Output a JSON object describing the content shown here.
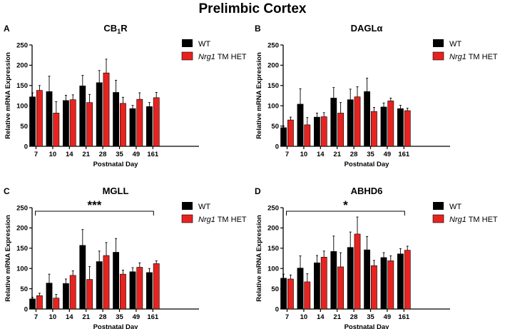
{
  "title": "Prelimbic Cortex",
  "colors": {
    "wt": "#000000",
    "het": "#e8231f",
    "axis": "#000000"
  },
  "chart_data": [
    {
      "type": "bar",
      "panel": "A",
      "title": "CB",
      "title_sub": "1",
      "title_suffix": "R",
      "xlabel": "Postnatal Day",
      "ylabel": "Relative mRNA Expression",
      "ylim": [
        0,
        250
      ],
      "yticks": [
        "0",
        "50",
        "100",
        "150",
        "200",
        "250"
      ],
      "categories": [
        "7",
        "10",
        "14",
        "21",
        "28",
        "35",
        "49",
        "161"
      ],
      "legend": {
        "wt": "WT",
        "het_italic": "Nrg1",
        "het_rest": " TM HET",
        "position": "top-right"
      },
      "significance": "",
      "series": [
        {
          "name": "WT",
          "values": [
            122,
            135,
            113,
            149,
            157,
            133,
            93,
            98
          ],
          "errors": [
            10,
            38,
            13,
            26,
            30,
            30,
            8,
            10
          ]
        },
        {
          "name": "Nrg1 TM HET",
          "values": [
            138,
            82,
            115,
            108,
            181,
            106,
            116,
            120
          ],
          "errors": [
            12,
            28,
            12,
            20,
            34,
            15,
            16,
            13
          ]
        }
      ]
    },
    {
      "type": "bar",
      "panel": "B",
      "title": "DAGLα",
      "title_sub": "",
      "title_suffix": "",
      "xlabel": "Postnatal Day",
      "ylabel": "Relative mRNA Expression",
      "ylim": [
        0,
        250
      ],
      "yticks": [
        "0",
        "50",
        "100",
        "150",
        "200",
        "250"
      ],
      "categories": [
        "7",
        "10",
        "14",
        "21",
        "28",
        "35",
        "49",
        "161"
      ],
      "legend": {
        "wt": "WT",
        "het_italic": "Nrg1",
        "het_rest": " TM HET",
        "position": "top-right"
      },
      "significance": "",
      "series": [
        {
          "name": "WT",
          "values": [
            46,
            104,
            72,
            119,
            115,
            135,
            97,
            93
          ],
          "errors": [
            4,
            38,
            10,
            26,
            26,
            33,
            10,
            8
          ]
        },
        {
          "name": "Nrg1 TM HET",
          "values": [
            65,
            53,
            73,
            82,
            122,
            86,
            112,
            88
          ],
          "errors": [
            7,
            18,
            10,
            26,
            25,
            10,
            7,
            6
          ]
        }
      ]
    },
    {
      "type": "bar",
      "panel": "C",
      "title": "MGLL",
      "title_sub": "",
      "title_suffix": "",
      "xlabel": "Postnatal Day",
      "ylabel": "Relative mRNA Expression",
      "ylim": [
        0,
        250
      ],
      "yticks": [
        "0",
        "50",
        "100",
        "150",
        "200",
        "250"
      ],
      "categories": [
        "7",
        "10",
        "14",
        "21",
        "28",
        "35",
        "49",
        "161"
      ],
      "legend": {
        "wt": "WT",
        "het_italic": "Nrg1",
        "het_rest": " TM HET",
        "position": "top-right"
      },
      "significance": "***",
      "series": [
        {
          "name": "WT",
          "values": [
            25,
            64,
            63,
            157,
            117,
            140,
            92,
            90
          ],
          "errors": [
            4,
            22,
            11,
            39,
            26,
            34,
            10,
            10
          ]
        },
        {
          "name": "Nrg1 TM HET",
          "values": [
            33,
            27,
            83,
            73,
            132,
            86,
            103,
            112
          ],
          "errors": [
            6,
            9,
            11,
            32,
            32,
            10,
            11,
            7
          ]
        }
      ]
    },
    {
      "type": "bar",
      "panel": "D",
      "title": "ABHD6",
      "title_sub": "",
      "title_suffix": "",
      "xlabel": "Postnatal Day",
      "ylabel": "Relative mRNA Expression",
      "ylim": [
        0,
        250
      ],
      "yticks": [
        "0",
        "50",
        "100",
        "150",
        "200",
        "250"
      ],
      "categories": [
        "7",
        "10",
        "14",
        "21",
        "28",
        "35",
        "49",
        "161"
      ],
      "legend": {
        "wt": "WT",
        "het_italic": "Nrg1",
        "het_rest": " TM HET",
        "position": "top-right"
      },
      "significance": "*",
      "series": [
        {
          "name": "WT",
          "values": [
            76,
            101,
            114,
            142,
            152,
            146,
            127,
            136
          ],
          "errors": [
            10,
            30,
            18,
            38,
            38,
            33,
            12,
            13
          ]
        },
        {
          "name": "Nrg1 TM HET",
          "values": [
            74,
            67,
            128,
            104,
            185,
            107,
            119,
            145
          ],
          "errors": [
            10,
            20,
            15,
            35,
            42,
            13,
            12,
            10
          ]
        }
      ]
    }
  ]
}
